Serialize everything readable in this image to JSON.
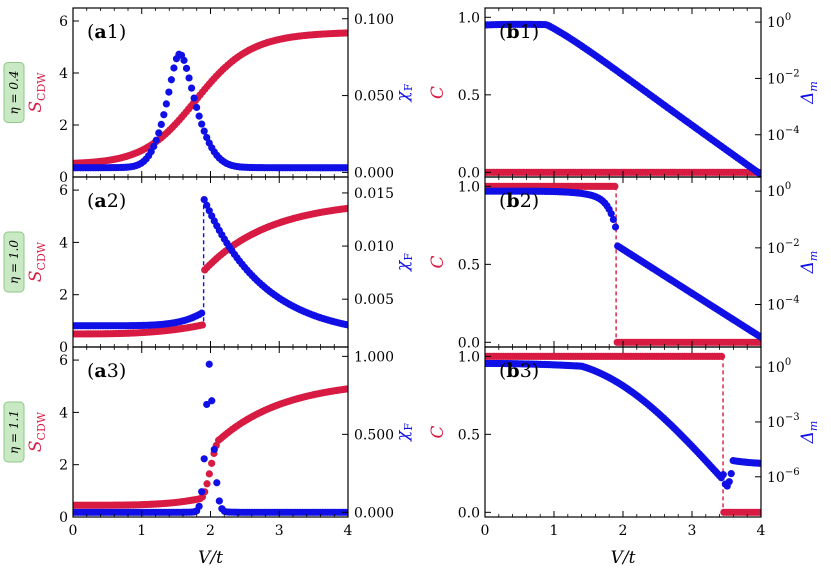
{
  "colors": {
    "red": "#d81b43",
    "blue": "#1010e6",
    "eta_box_fill": "#c9e8c4",
    "eta_box_stroke": "#8cc987"
  },
  "x_axis_label": "V/t",
  "x_ticks": [
    "0",
    "1",
    "2",
    "3",
    "4"
  ],
  "row_labels": [
    "η = 0.4",
    "η = 1.0",
    "η = 1.1"
  ],
  "chart_data": [
    {
      "id": "a1",
      "type": "scatter",
      "panel_label": "(a1)",
      "xlim": [
        0,
        4
      ],
      "left_axis": {
        "label": "S_CDW",
        "ylim": [
          0,
          6.5
        ],
        "ticks": [
          0,
          2,
          4,
          6
        ],
        "tick_labels": [
          "0",
          "2",
          "4",
          "6"
        ]
      },
      "right_axis": {
        "label": "χ_F",
        "ylim": [
          -0.003,
          0.107
        ],
        "ticks": [
          0,
          0.05,
          0.1
        ],
        "tick_labels": [
          "0.000",
          "0.050",
          "0.100"
        ]
      },
      "series": [
        {
          "axis": "left",
          "color": "red",
          "fn": "scdw_smooth",
          "params": {
            "center": 1.75,
            "k": 2.6
          },
          "x_range": [
            0,
            4
          ],
          "n": 120
        },
        {
          "axis": "right",
          "color": "blue",
          "fn": "peak",
          "params": {
            "center": 1.55,
            "height": 0.074,
            "base": 0.003,
            "wl": 0.23,
            "wr": 0.28
          },
          "x_range": [
            0,
            4
          ],
          "n": 110
        }
      ]
    },
    {
      "id": "a2",
      "type": "scatter",
      "panel_label": "(a2)",
      "xlim": [
        0,
        4
      ],
      "left_axis": {
        "label": "S_CDW",
        "ylim": [
          0,
          6.5
        ],
        "ticks": [
          0,
          2,
          4,
          6
        ],
        "tick_labels": [
          "0",
          "2",
          "4",
          "6"
        ]
      },
      "right_axis": {
        "label": "χ_F",
        "ylim": [
          0.0005,
          0.0165
        ],
        "ticks": [
          0.005,
          0.01,
          0.015
        ],
        "tick_labels": [
          "0.005",
          "0.010",
          "0.015"
        ]
      },
      "transition_x": 1.9,
      "series": [
        {
          "axis": "left",
          "color": "red",
          "fn": "scdw_jump",
          "params": {
            "xc": 1.9,
            "jump": 2.9,
            "max": 5.3
          },
          "x_range": [
            0,
            4
          ],
          "n": 120
        },
        {
          "axis": "right",
          "color": "blue",
          "fn": "chi_jump",
          "params": {
            "xc": 1.9,
            "pre": 0.0025,
            "pre_end": 0.0038,
            "peak": 0.0145,
            "base": 0.0014
          },
          "x_range": [
            0,
            4
          ],
          "n": 110
        }
      ]
    },
    {
      "id": "a3",
      "type": "scatter",
      "panel_label": "(a3)",
      "xlim": [
        0,
        4
      ],
      "left_axis": {
        "label": "S_CDW",
        "ylim": [
          0,
          6.5
        ],
        "ticks": [
          0,
          2,
          4,
          6
        ],
        "tick_labels": [
          "0",
          "2",
          "4",
          "6"
        ]
      },
      "right_axis": {
        "label": "χ_F",
        "ylim": [
          -0.03,
          1.06
        ],
        "ticks": [
          0,
          0.5,
          1
        ],
        "tick_labels": [
          "0.000",
          "0.500",
          "1.000"
        ]
      },
      "series": [
        {
          "axis": "left",
          "color": "red",
          "fn": "scdw_sharp",
          "params": {
            "xc": 2.0,
            "max": 4.9
          },
          "x_range": [
            0,
            4
          ],
          "n": 120
        },
        {
          "axis": "right",
          "color": "blue",
          "fn": "peak",
          "params": {
            "center": 1.98,
            "height": 0.95,
            "base": 0.0,
            "wl": 0.06,
            "wr": 0.07
          },
          "x_range": [
            0,
            4
          ],
          "n": 110
        }
      ]
    },
    {
      "id": "b1",
      "type": "scatter",
      "panel_label": "(b1)",
      "xlim": [
        0,
        4
      ],
      "left_axis": {
        "label": "C",
        "ylim": [
          -0.03,
          1.06
        ],
        "ticks": [
          0,
          0.5,
          1
        ],
        "tick_labels": [
          "0.0",
          "0.5",
          "1.0"
        ]
      },
      "right_axis": {
        "label": "Δ_m",
        "log": true,
        "ylim": [
          -5.5,
          0.5
        ],
        "ticks": [
          -4,
          -2,
          0
        ],
        "tick_labels": [
          "10^-4",
          "10^-2",
          "10^0"
        ]
      },
      "series": [
        {
          "axis": "left",
          "color": "red",
          "fn": "const",
          "params": {
            "value": 0.0
          },
          "x_range": [
            0,
            4
          ],
          "n": 120
        },
        {
          "axis": "right",
          "color": "blue",
          "fn": "gap_b1",
          "params": {},
          "x_range": [
            0,
            4
          ],
          "n": 120
        }
      ]
    },
    {
      "id": "b2",
      "type": "scatter",
      "panel_label": "(b2)",
      "xlim": [
        0,
        4
      ],
      "left_axis": {
        "label": "C",
        "ylim": [
          -0.03,
          1.06
        ],
        "ticks": [
          0,
          0.5,
          1
        ],
        "tick_labels": [
          "0.0",
          "0.5",
          "1.0"
        ]
      },
      "right_axis": {
        "label": "Δ_m",
        "log": true,
        "ylim": [
          -5.5,
          0.5
        ],
        "ticks": [
          -4,
          -2,
          0
        ],
        "tick_labels": [
          "10^-4",
          "10^-2",
          "10^0"
        ]
      },
      "transition_x": 1.9,
      "series": [
        {
          "axis": "left",
          "color": "red",
          "fn": "step",
          "params": {
            "xc": 1.9,
            "before": 1.0,
            "after": 0.0
          },
          "x_range": [
            0,
            4
          ],
          "n": 120
        },
        {
          "axis": "right",
          "color": "blue",
          "fn": "gap_b2",
          "params": {},
          "x_range": [
            0,
            4
          ],
          "n": 130
        }
      ]
    },
    {
      "id": "b3",
      "type": "scatter",
      "panel_label": "(b3)",
      "xlim": [
        0,
        4
      ],
      "left_axis": {
        "label": "C",
        "ylim": [
          -0.03,
          1.06
        ],
        "ticks": [
          0,
          0.5,
          1
        ],
        "tick_labels": [
          "0.0",
          "0.5",
          "1.0"
        ]
      },
      "right_axis": {
        "label": "Δ_m",
        "log": true,
        "ylim": [
          -8.2,
          1.1
        ],
        "ticks": [
          -6,
          -3,
          0
        ],
        "tick_labels": [
          "10^-6",
          "10^-3",
          "10^0"
        ]
      },
      "transition_x": 3.45,
      "series": [
        {
          "axis": "left",
          "color": "red",
          "fn": "step",
          "params": {
            "xc": 3.45,
            "before": 1.0,
            "after": 0.0
          },
          "x_range": [
            0,
            4
          ],
          "n": 120
        },
        {
          "axis": "right",
          "color": "blue",
          "fn": "gap_b3",
          "params": {},
          "x_range": [
            0,
            4
          ],
          "n": 140
        }
      ]
    }
  ]
}
